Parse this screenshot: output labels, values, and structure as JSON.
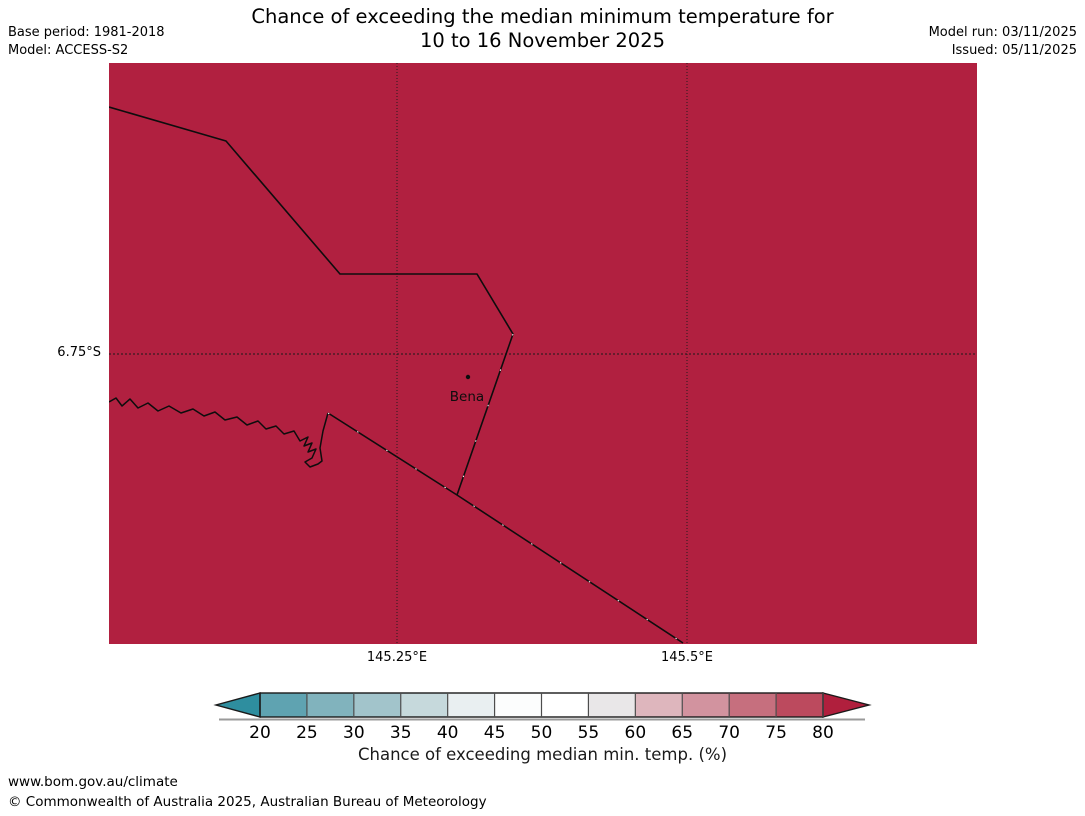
{
  "header": {
    "base_period": "Base period: 1981-2018",
    "model": "Model: ACCESS-S2",
    "model_run": "Model run: 03/11/2025",
    "issued": "Issued: 05/11/2025",
    "title_line1": "Chance of exceeding the median minimum temperature for",
    "title_line2": "10 to 16 November 2025"
  },
  "map": {
    "fill_color": "#b12040",
    "boundary_color": "#0d0d0d",
    "y_tick_label": "6.75°S",
    "x_tick_labels": [
      "145.25°E",
      "145.5°E"
    ],
    "place": {
      "name": "Bena"
    }
  },
  "colorbar": {
    "ticks": [
      "20",
      "25",
      "30",
      "35",
      "40",
      "45",
      "50",
      "55",
      "60",
      "65",
      "70",
      "75",
      "80"
    ],
    "segment_colors": [
      "#5fa3b1",
      "#81b3bd",
      "#a2c4cb",
      "#c6d9dc",
      "#e9eff1",
      "#fcfdfd",
      "#ffffff",
      "#e9e7e8",
      "#deb6bd",
      "#d2939f",
      "#c66f7e",
      "#bc4a5e"
    ],
    "arrow_left_color": "#2e8e9f",
    "arrow_right_color": "#b01f3d",
    "outline_color": "#1a1a1a",
    "divider_color": "#4d4d4d",
    "shadow_color": "#9a9a9a"
  },
  "caption": "Chance of exceeding median min. temp. (%)",
  "footer": {
    "url": "www.bom.gov.au/climate",
    "copyright": "© Commonwealth of Australia 2025, Australian Bureau of Meteorology"
  },
  "chart_data": {
    "type": "heatmap",
    "title": "Chance of exceeding the median minimum temperature for 10 to 16 November 2025",
    "colorbar_label": "Chance of exceeding median min. temp. (%)",
    "colorbar_ticks": [
      20,
      25,
      30,
      35,
      40,
      45,
      50,
      55,
      60,
      65,
      70,
      75,
      80
    ],
    "colorbar_range_open_ended": true,
    "x_tick_labels": [
      "145.25°E",
      "145.5°E"
    ],
    "y_tick_labels": [
      "6.75°S"
    ],
    "region_value": "entire visible map filled with >80% color (deep red)",
    "markers": [
      {
        "name": "Bena",
        "approx_position": "146.31°E-ish pixel (468,377), just left of district boundary"
      }
    ],
    "legend_position": "bottom",
    "grid": "dotted graticule at 145.25E, 145.5E, 6.75S"
  }
}
